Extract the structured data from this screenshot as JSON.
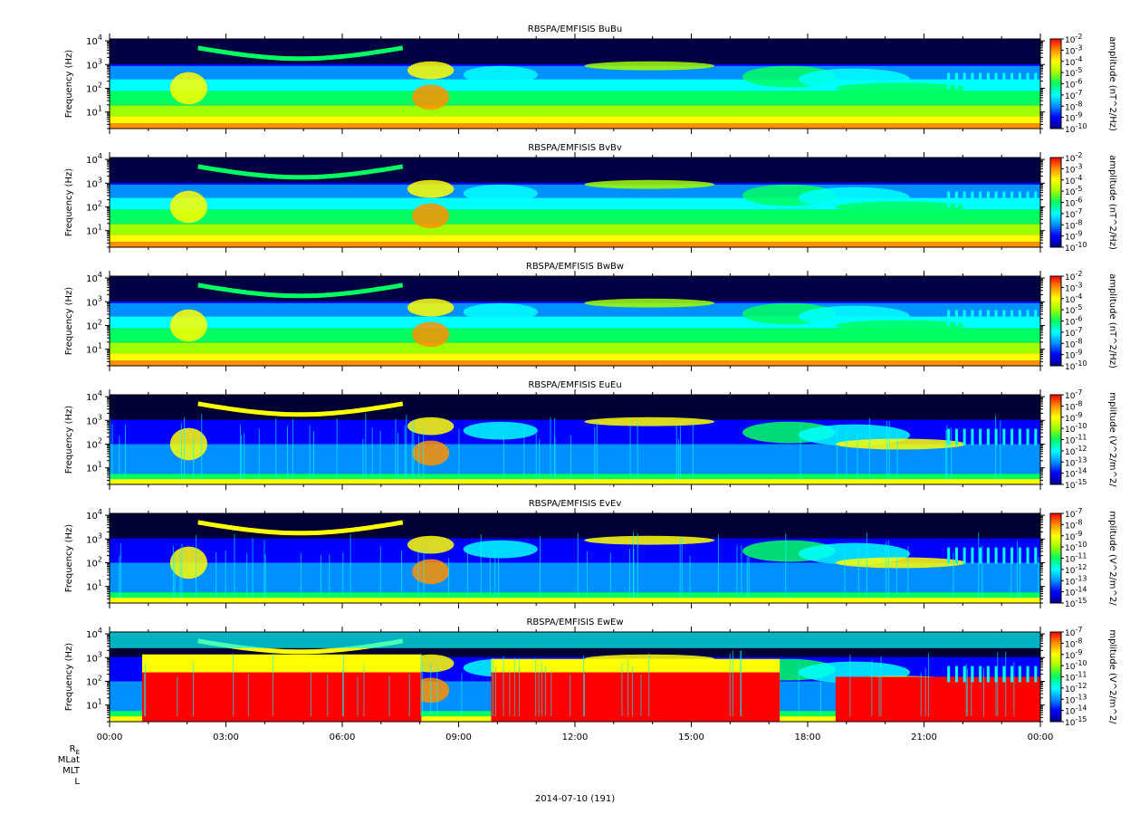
{
  "date_label": "2014-07-10 (191)",
  "ephemeris_labels": [
    "R_E",
    "MLat",
    "MLT",
    "L"
  ],
  "x_tick_labels": [
    "00:00",
    "03:00",
    "06:00",
    "09:00",
    "12:00",
    "15:00",
    "18:00",
    "21:00",
    "00:00"
  ],
  "colormap": [
    "#00008c",
    "#0000ff",
    "#0090ff",
    "#00ffff",
    "#00ff60",
    "#a0ff00",
    "#ffff00",
    "#ff9000",
    "#ff0000"
  ],
  "chart_data": [
    {
      "type": "heatmap",
      "title": "RBSPA/EMFISIS  BuBu",
      "ylabel": "Frequency (Hz)",
      "y_tick_labels": [
        "10^1",
        "10^2",
        "10^3",
        "10^4"
      ],
      "y_scale": "log",
      "ylim": [
        2,
        12000
      ],
      "xlim": [
        "00:00",
        "24:00"
      ],
      "colorbar": {
        "label": "amplitude (nT^2/Hz)",
        "tick_labels": [
          "10^-2",
          "10^-3",
          "10^-4",
          "10^-5",
          "10^-6",
          "10^-7",
          "10^-8",
          "10^-9",
          "10^-10"
        ]
      }
    },
    {
      "type": "heatmap",
      "title": "RBSPA/EMFISIS  BvBv",
      "ylabel": "Frequency (Hz)",
      "y_tick_labels": [
        "10^1",
        "10^2",
        "10^3",
        "10^4"
      ],
      "y_scale": "log",
      "ylim": [
        2,
        12000
      ],
      "xlim": [
        "00:00",
        "24:00"
      ],
      "colorbar": {
        "label": "amplitude (nT^2/Hz)",
        "tick_labels": [
          "10^-2",
          "10^-3",
          "10^-4",
          "10^-5",
          "10^-6",
          "10^-7",
          "10^-8",
          "10^-9",
          "10^-10"
        ]
      }
    },
    {
      "type": "heatmap",
      "title": "RBSPA/EMFISIS  BwBw",
      "ylabel": "Frequency (Hz)",
      "y_tick_labels": [
        "10^1",
        "10^2",
        "10^3",
        "10^4"
      ],
      "y_scale": "log",
      "ylim": [
        2,
        12000
      ],
      "xlim": [
        "00:00",
        "24:00"
      ],
      "colorbar": {
        "label": "amplitude (nT^2/Hz)",
        "tick_labels": [
          "10^-2",
          "10^-3",
          "10^-4",
          "10^-5",
          "10^-6",
          "10^-7",
          "10^-8",
          "10^-9",
          "10^-10"
        ]
      }
    },
    {
      "type": "heatmap",
      "title": "RBSPA/EMFISIS  EuEu",
      "ylabel": "Frequency (Hz)",
      "y_tick_labels": [
        "10^1",
        "10^2",
        "10^3",
        "10^4"
      ],
      "y_scale": "log",
      "ylim": [
        2,
        12000
      ],
      "xlim": [
        "00:00",
        "24:00"
      ],
      "colorbar": {
        "label": "mplitude (V^2/m^2/",
        "tick_labels": [
          "10^-7",
          "10^-8",
          "10^-9",
          "10^-10",
          "10^-11",
          "10^-12",
          "10^-13",
          "10^-14",
          "10^-15"
        ]
      }
    },
    {
      "type": "heatmap",
      "title": "RBSPA/EMFISIS  EvEv",
      "ylabel": "Frequency (Hz)",
      "y_tick_labels": [
        "10^1",
        "10^2",
        "10^3",
        "10^4"
      ],
      "y_scale": "log",
      "ylim": [
        2,
        12000
      ],
      "xlim": [
        "00:00",
        "24:00"
      ],
      "colorbar": {
        "label": "mplitude (V^2/m^2/",
        "tick_labels": [
          "10^-7",
          "10^-8",
          "10^-9",
          "10^-10",
          "10^-11",
          "10^-12",
          "10^-13",
          "10^-14",
          "10^-15"
        ]
      }
    },
    {
      "type": "heatmap",
      "title": "RBSPA/EMFISIS  EwEw",
      "ylabel": "Frequency (Hz)",
      "y_tick_labels": [
        "10^1",
        "10^2",
        "10^3",
        "10^4"
      ],
      "y_scale": "log",
      "ylim": [
        2,
        12000
      ],
      "xlim": [
        "00:00",
        "24:00"
      ],
      "colorbar": {
        "label": "mplitude (V^2/m^2/",
        "tick_labels": [
          "10^-7",
          "10^-8",
          "10^-9",
          "10^-10",
          "10^-11",
          "10^-12",
          "10^-13",
          "10^-14",
          "10^-15"
        ]
      }
    }
  ]
}
